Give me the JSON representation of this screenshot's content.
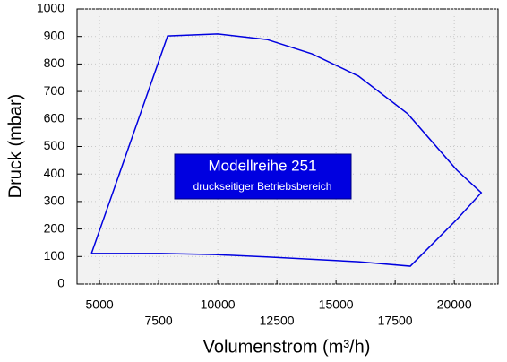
{
  "chart_data": {
    "type": "line",
    "xlabel": "Volumenstrom (m³/h)",
    "ylabel": "Druck (mbar)",
    "annotation": {
      "title": "Modellreihe 251",
      "subtitle": "druckseitiger Betriebsbereich",
      "color": "#0000e0"
    },
    "x": [
      4660,
      7880,
      10000,
      12080,
      13980,
      15950,
      18030,
      20110,
      21140,
      20110,
      18140,
      15950,
      12160,
      9890,
      7610,
      4660
    ],
    "values": [
      111,
      902,
      909,
      889,
      837,
      756,
      619,
      414,
      332,
      235,
      65,
      81,
      98,
      107,
      111,
      111
    ],
    "color": "#0000e0",
    "xlim": [
      4050,
      21850
    ],
    "xticks": [
      5000,
      7500,
      10000,
      12500,
      15000,
      17500,
      20000
    ],
    "ylim": [
      0,
      1000
    ],
    "yticks": [
      0,
      100,
      200,
      300,
      400,
      500,
      600,
      700,
      800,
      900,
      1000
    ],
    "grid": true
  }
}
